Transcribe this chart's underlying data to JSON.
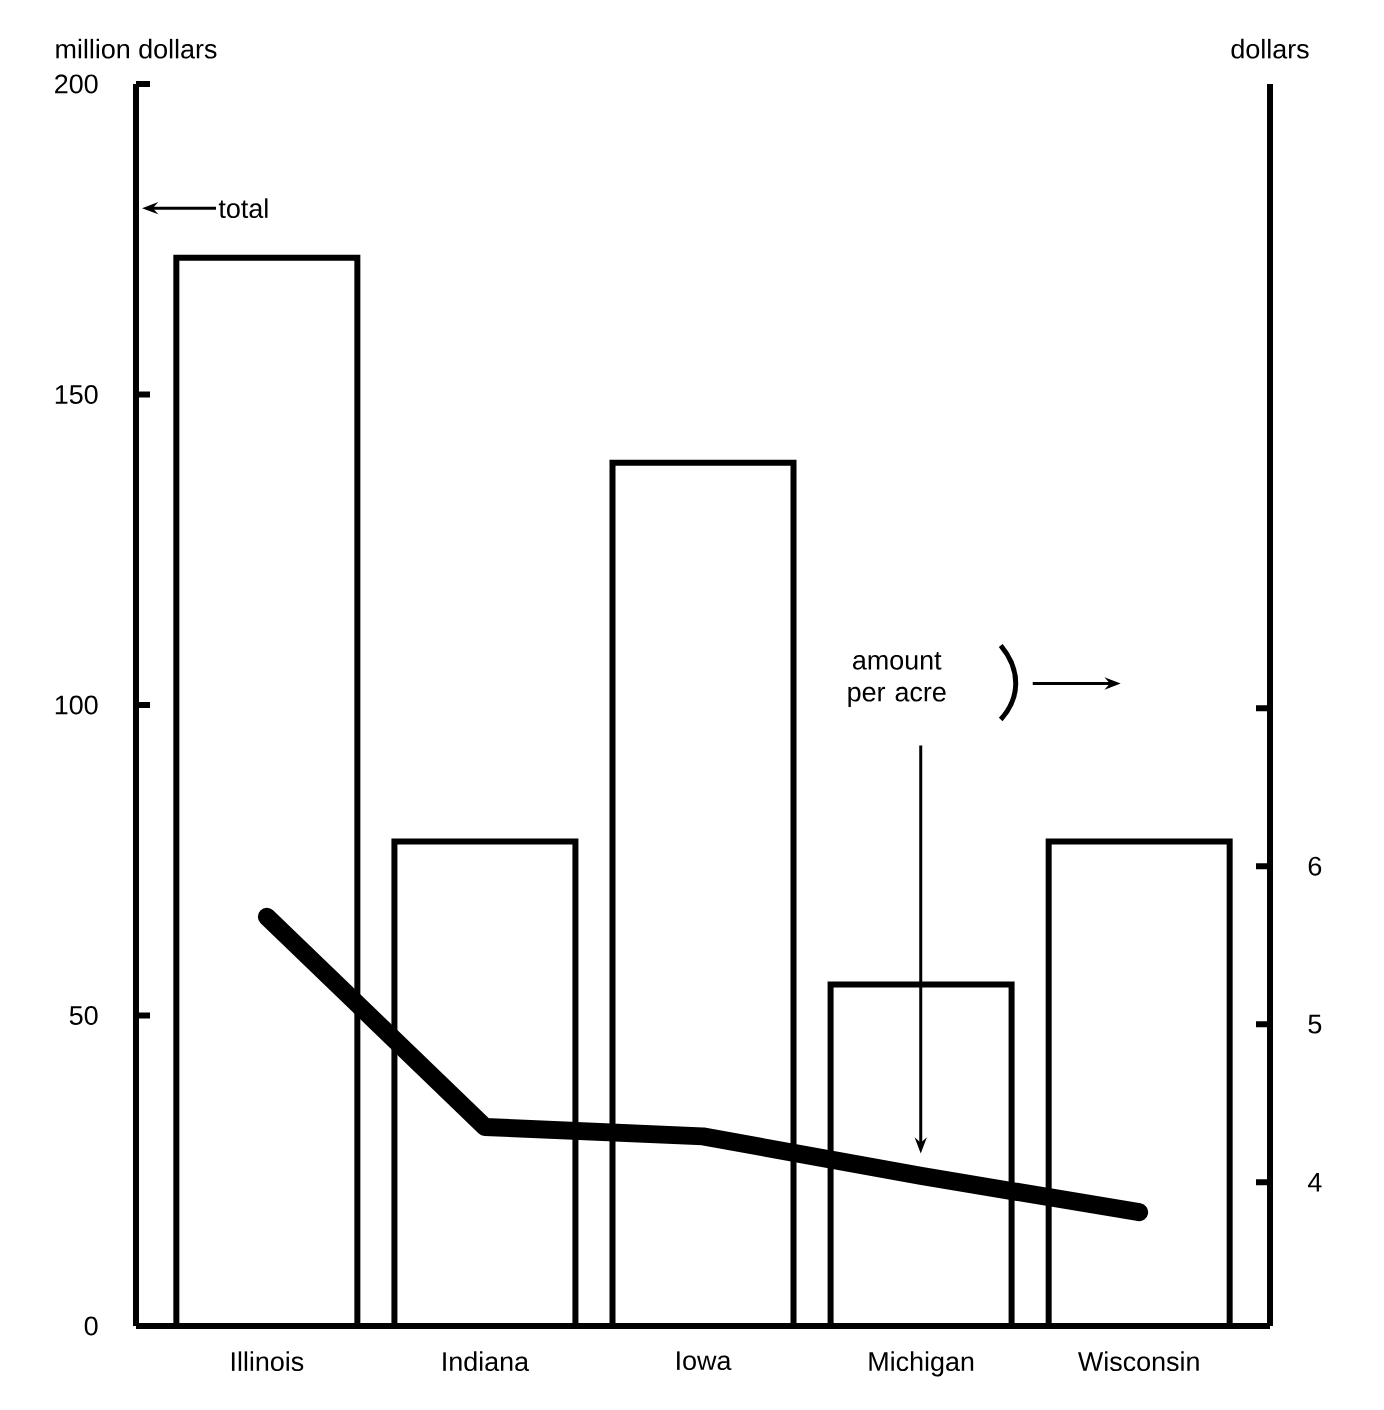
{
  "chart_data": {
    "type": "bar",
    "ylabel": "million dollars",
    "y2label": "dollars",
    "categories": [
      "Illinois",
      "Indiana",
      "Iowa",
      "Michigan",
      "Wisconsin"
    ],
    "series": [
      {
        "type": "bar",
        "color": "#000000",
        "values": [
          172,
          78,
          139,
          55,
          78
        ]
      },
      {
        "type": "line",
        "axis": "y2",
        "color": "#000000",
        "values": [
          5.68,
          4.35,
          4.29,
          4.04,
          3.81
        ]
      }
    ],
    "ylim": [
      0,
      200
    ],
    "yticks": [
      0,
      50,
      100,
      150,
      200
    ],
    "y2lim": [
      3.09,
      10.95
    ],
    "y2ticks": [
      4,
      5,
      6,
      {
        "value": 7,
        "label": null
      }
    ],
    "annotations": [
      "total",
      "amount per acre"
    ]
  }
}
